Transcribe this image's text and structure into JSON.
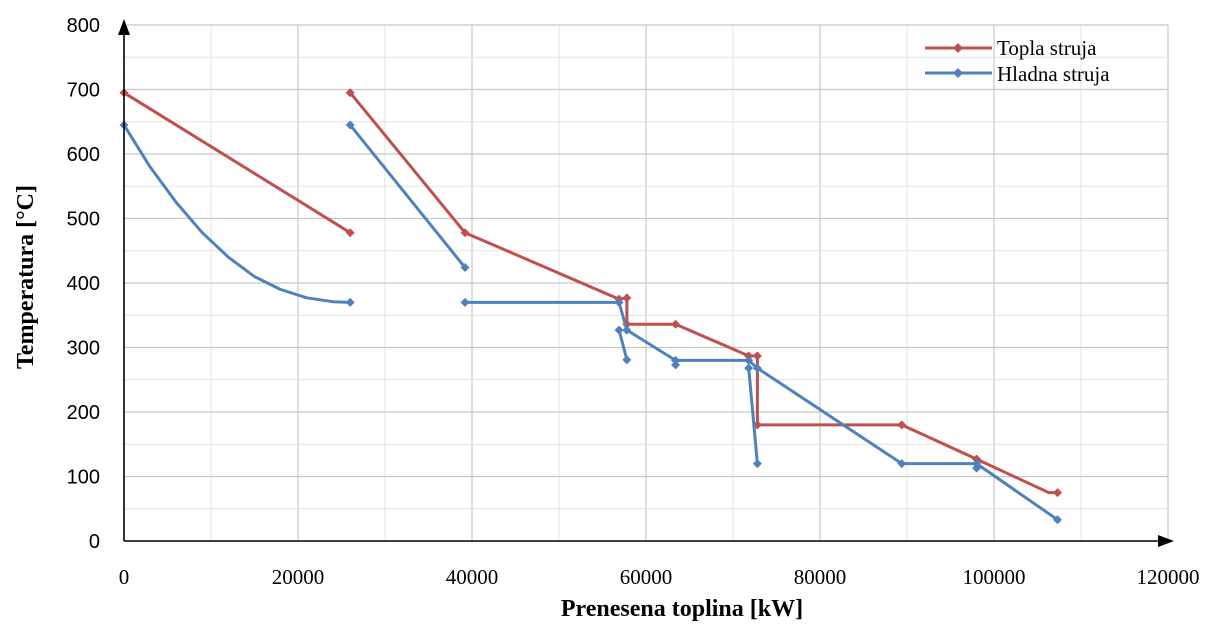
{
  "chart_data": {
    "type": "line",
    "xlabel": "Prenesena toplina [kW]",
    "ylabel": "Temperatura [°C]",
    "xlim": [
      0,
      120000
    ],
    "ylim": [
      0,
      800
    ],
    "x_ticks": [
      "0",
      "20000",
      "40000",
      "60000",
      "80000",
      "100000",
      "120000"
    ],
    "y_ticks": [
      "0",
      "100",
      "200",
      "300",
      "400",
      "500",
      "600",
      "700",
      "800"
    ],
    "x_tick_values": [
      0,
      20000,
      40000,
      60000,
      80000,
      100000,
      120000
    ],
    "y_tick_values": [
      0,
      100,
      200,
      300,
      400,
      500,
      600,
      700,
      800
    ],
    "grid": true,
    "legend_position": "top-right",
    "series": [
      {
        "name": "Topla struja",
        "color": "#c0504d",
        "segments": [
          [
            [
              0,
              695
            ],
            [
              26000,
              478
            ]
          ],
          [
            [
              26000,
              695
            ],
            [
              39200,
              478
            ],
            [
              56900,
              375
            ],
            [
              57800,
              377
            ],
            [
              57800,
              336
            ],
            [
              63400,
              336
            ],
            [
              71800,
              287
            ],
            [
              72800,
              287
            ],
            [
              72800,
              180
            ],
            [
              89400,
              180
            ],
            [
              98000,
              127
            ],
            [
              106300,
              75
            ],
            [
              107300,
              75
            ]
          ]
        ],
        "markers": [
          [
            0,
            695
          ],
          [
            26000,
            478
          ],
          [
            26000,
            695
          ],
          [
            39200,
            478
          ],
          [
            56900,
            375
          ],
          [
            57800,
            377
          ],
          [
            57800,
            336
          ],
          [
            63400,
            336
          ],
          [
            71800,
            287
          ],
          [
            72800,
            287
          ],
          [
            72800,
            180
          ],
          [
            89400,
            180
          ],
          [
            98000,
            127
          ],
          [
            107300,
            75
          ]
        ]
      },
      {
        "name": "Hladna struja",
        "color": "#4f81bd",
        "segments": [
          [
            [
              0,
              645
            ],
            [
              3000,
              580
            ],
            [
              6000,
              525
            ],
            [
              9000,
              478
            ],
            [
              12000,
              440
            ],
            [
              15000,
              410
            ],
            [
              18000,
              390
            ],
            [
              21000,
              377
            ],
            [
              24000,
              371
            ],
            [
              26000,
              370
            ]
          ],
          [
            [
              26000,
              645
            ],
            [
              39200,
              424
            ]
          ],
          [
            [
              39200,
              370
            ],
            [
              56900,
              370
            ],
            [
              57800,
              327
            ],
            [
              63400,
              280
            ],
            [
              71800,
              280
            ],
            [
              72800,
              268
            ],
            [
              89400,
              120
            ],
            [
              98000,
              120
            ],
            [
              107300,
              33
            ]
          ],
          [
            [
              56900,
              327
            ],
            [
              57800,
              281
            ]
          ],
          [
            [
              63400,
              273
            ],
            [
              63400,
              280
            ]
          ],
          [
            [
              71800,
              268
            ],
            [
              72800,
              120
            ]
          ]
        ],
        "markers": [
          [
            0,
            645
          ],
          [
            26000,
            370
          ],
          [
            26000,
            645
          ],
          [
            39200,
            424
          ],
          [
            39200,
            370
          ],
          [
            56900,
            370
          ],
          [
            56900,
            327
          ],
          [
            57800,
            327
          ],
          [
            57800,
            281
          ],
          [
            63400,
            280
          ],
          [
            63400,
            273
          ],
          [
            71800,
            280
          ],
          [
            71800,
            268
          ],
          [
            72800,
            268
          ],
          [
            72800,
            120
          ],
          [
            89400,
            120
          ],
          [
            98000,
            120
          ],
          [
            98000,
            113
          ],
          [
            107300,
            33
          ]
        ]
      }
    ]
  }
}
